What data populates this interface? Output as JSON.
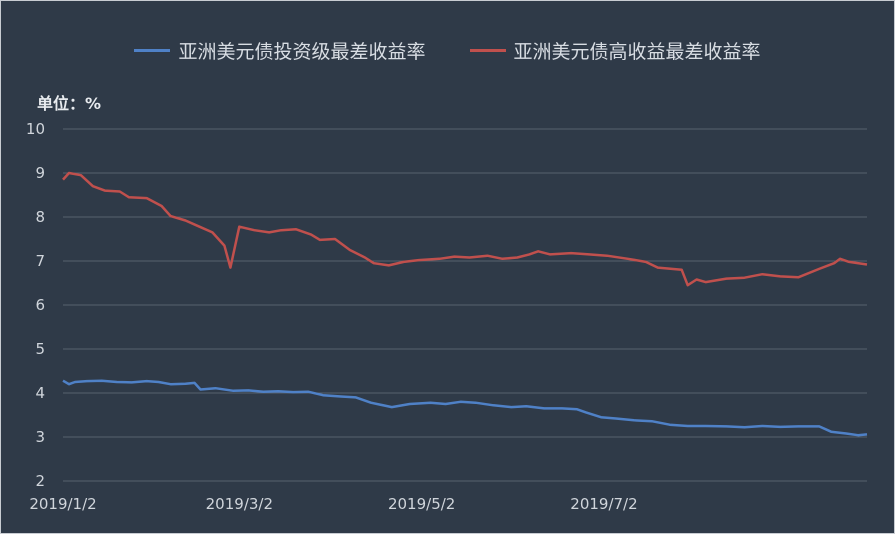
{
  "chart_data": {
    "type": "line",
    "unit_label": "单位：%",
    "ylim": [
      2,
      10
    ],
    "yticks": [
      2,
      3,
      4,
      5,
      6,
      7,
      8,
      9,
      10
    ],
    "grid": true,
    "legend_position": "top",
    "x_ticks": [
      {
        "date": "2019-01-02",
        "label": "2019/1/2"
      },
      {
        "date": "2019-03-02",
        "label": "2019/3/2"
      },
      {
        "date": "2019-05-02",
        "label": "2019/5/2"
      },
      {
        "date": "2019-07-02",
        "label": "2019/7/2"
      }
    ],
    "series": [
      {
        "name": "亚洲美元债投资级最差收益率",
        "color": "#4f81c7",
        "points": [
          [
            "2019-01-02",
            4.28
          ],
          [
            "2019-01-04",
            4.2
          ],
          [
            "2019-01-06",
            4.25
          ],
          [
            "2019-01-10",
            4.27
          ],
          [
            "2019-01-15",
            4.28
          ],
          [
            "2019-01-20",
            4.25
          ],
          [
            "2019-01-25",
            4.24
          ],
          [
            "2019-01-30",
            4.27
          ],
          [
            "2019-02-03",
            4.25
          ],
          [
            "2019-02-07",
            4.2
          ],
          [
            "2019-02-12",
            4.21
          ],
          [
            "2019-02-15",
            4.23
          ],
          [
            "2019-02-17",
            4.08
          ],
          [
            "2019-02-22",
            4.11
          ],
          [
            "2019-02-28",
            4.05
          ],
          [
            "2019-03-05",
            4.06
          ],
          [
            "2019-03-10",
            4.03
          ],
          [
            "2019-03-15",
            4.04
          ],
          [
            "2019-03-20",
            4.02
          ],
          [
            "2019-03-25",
            4.03
          ],
          [
            "2019-03-30",
            3.95
          ],
          [
            "2019-04-05",
            3.92
          ],
          [
            "2019-04-10",
            3.9
          ],
          [
            "2019-04-15",
            3.78
          ],
          [
            "2019-04-22",
            3.68
          ],
          [
            "2019-04-28",
            3.75
          ],
          [
            "2019-05-05",
            3.78
          ],
          [
            "2019-05-10",
            3.75
          ],
          [
            "2019-05-15",
            3.8
          ],
          [
            "2019-05-20",
            3.78
          ],
          [
            "2019-05-26",
            3.72
          ],
          [
            "2019-06-01",
            3.68
          ],
          [
            "2019-06-06",
            3.7
          ],
          [
            "2019-06-12",
            3.65
          ],
          [
            "2019-06-18",
            3.65
          ],
          [
            "2019-06-23",
            3.63
          ],
          [
            "2019-06-26",
            3.56
          ],
          [
            "2019-07-01",
            3.45
          ],
          [
            "2019-07-06",
            3.42
          ],
          [
            "2019-07-12",
            3.38
          ],
          [
            "2019-07-18",
            3.36
          ],
          [
            "2019-07-24",
            3.28
          ],
          [
            "2019-07-30",
            3.25
          ],
          [
            "2019-08-05",
            3.25
          ],
          [
            "2019-08-12",
            3.24
          ],
          [
            "2019-08-18",
            3.22
          ],
          [
            "2019-08-24",
            3.25
          ],
          [
            "2019-08-30",
            3.23
          ],
          [
            "2019-09-05",
            3.24
          ],
          [
            "2019-09-12",
            3.24
          ],
          [
            "2019-09-16",
            3.12
          ],
          [
            "2019-09-21",
            3.08
          ],
          [
            "2019-09-25",
            3.04
          ],
          [
            "2019-09-28",
            3.06
          ]
        ]
      },
      {
        "name": "亚洲美元债高收益最差收益率",
        "color": "#c0504d",
        "points": [
          [
            "2019-01-02",
            8.85
          ],
          [
            "2019-01-04",
            9.0
          ],
          [
            "2019-01-08",
            8.95
          ],
          [
            "2019-01-12",
            8.7
          ],
          [
            "2019-01-16",
            8.6
          ],
          [
            "2019-01-21",
            8.58
          ],
          [
            "2019-01-24",
            8.45
          ],
          [
            "2019-01-30",
            8.43
          ],
          [
            "2019-02-04",
            8.25
          ],
          [
            "2019-02-07",
            8.02
          ],
          [
            "2019-02-12",
            7.92
          ],
          [
            "2019-02-16",
            7.8
          ],
          [
            "2019-02-21",
            7.65
          ],
          [
            "2019-02-25",
            7.35
          ],
          [
            "2019-02-27",
            6.85
          ],
          [
            "2019-03-02",
            7.78
          ],
          [
            "2019-03-07",
            7.7
          ],
          [
            "2019-03-12",
            7.65
          ],
          [
            "2019-03-16",
            7.7
          ],
          [
            "2019-03-21",
            7.72
          ],
          [
            "2019-03-26",
            7.6
          ],
          [
            "2019-03-29",
            7.48
          ],
          [
            "2019-04-03",
            7.5
          ],
          [
            "2019-04-08",
            7.25
          ],
          [
            "2019-04-13",
            7.08
          ],
          [
            "2019-04-16",
            6.95
          ],
          [
            "2019-04-21",
            6.9
          ],
          [
            "2019-04-26",
            6.98
          ],
          [
            "2019-05-01",
            7.02
          ],
          [
            "2019-05-08",
            7.05
          ],
          [
            "2019-05-13",
            7.1
          ],
          [
            "2019-05-18",
            7.08
          ],
          [
            "2019-05-24",
            7.12
          ],
          [
            "2019-05-29",
            7.05
          ],
          [
            "2019-06-03",
            7.08
          ],
          [
            "2019-06-07",
            7.15
          ],
          [
            "2019-06-10",
            7.22
          ],
          [
            "2019-06-14",
            7.15
          ],
          [
            "2019-06-21",
            7.18
          ],
          [
            "2019-06-27",
            7.15
          ],
          [
            "2019-07-03",
            7.12
          ],
          [
            "2019-07-10",
            7.05
          ],
          [
            "2019-07-16",
            6.98
          ],
          [
            "2019-07-20",
            6.85
          ],
          [
            "2019-07-28",
            6.8
          ],
          [
            "2019-07-30",
            6.45
          ],
          [
            "2019-08-02",
            6.58
          ],
          [
            "2019-08-05",
            6.52
          ],
          [
            "2019-08-12",
            6.6
          ],
          [
            "2019-08-18",
            6.62
          ],
          [
            "2019-08-24",
            6.7
          ],
          [
            "2019-08-30",
            6.65
          ],
          [
            "2019-09-05",
            6.63
          ],
          [
            "2019-09-12",
            6.82
          ],
          [
            "2019-09-17",
            6.95
          ],
          [
            "2019-09-19",
            7.05
          ],
          [
            "2019-09-22",
            6.98
          ],
          [
            "2019-09-28",
            6.92
          ]
        ]
      }
    ]
  }
}
